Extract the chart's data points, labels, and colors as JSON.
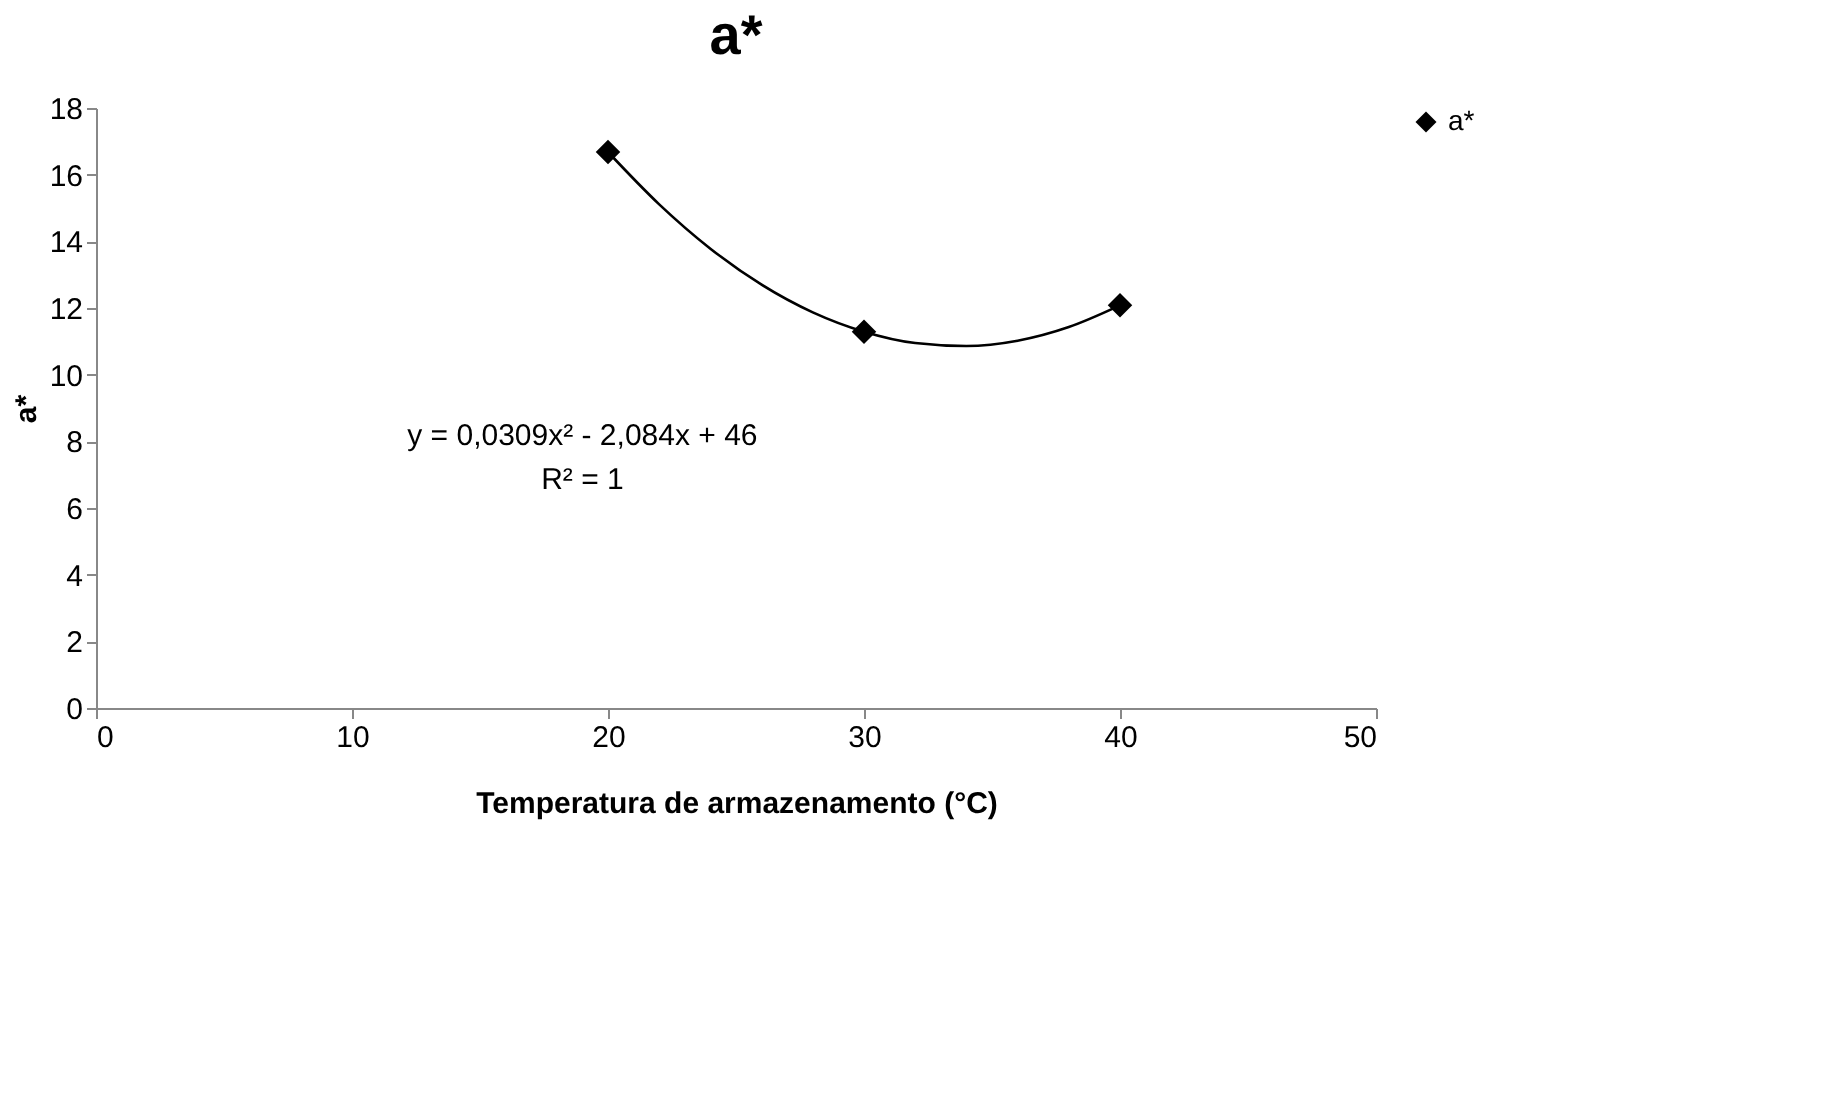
{
  "chart_data": {
    "type": "scatter",
    "title": "a*",
    "xlabel": "Temperatura de armazenamento (°C)",
    "ylabel": "a*",
    "xlim": [
      0,
      50
    ],
    "xticks": [
      0,
      10,
      20,
      30,
      40,
      50
    ],
    "ylim": [
      0,
      18
    ],
    "yticks": [
      0,
      2,
      4,
      6,
      8,
      10,
      12,
      14,
      16,
      18
    ],
    "grid": false,
    "legend": "right",
    "marker": "diamond",
    "series": [
      {
        "name": "a*",
        "color": "#000000",
        "x": [
          20,
          30,
          40
        ],
        "values": [
          16.68,
          11.29,
          12.08
        ]
      },
      {
        "type": "line",
        "color": "#000000",
        "line_style": "solid",
        "marker": "none",
        "x": [
          20,
          22,
          24,
          26,
          28,
          30,
          32,
          34,
          36,
          38,
          40
        ],
        "values": [
          16.68,
          15.11,
          13.78,
          12.7,
          11.87,
          11.29,
          10.95,
          10.86,
          11.02,
          11.43,
          12.08
        ]
      }
    ],
    "annotations": [
      "y = 0,0309x² - 2,084x + 46",
      "R² = 1"
    ]
  }
}
